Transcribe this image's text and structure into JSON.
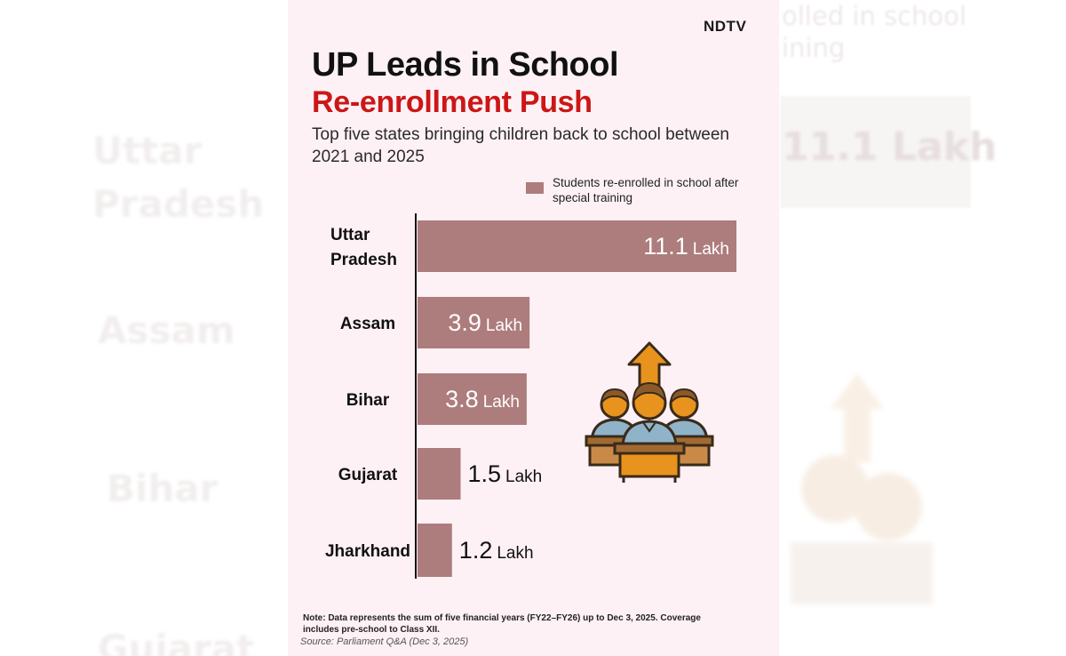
{
  "brand": "NDTV",
  "title_line1": "UP Leads in School",
  "title_line2": "Re-enrollment Push",
  "subtitle": "Top five states bringing children back to school between 2021 and 2025",
  "note": "Note: Data represents the sum of five financial years (FY22–FY26) up to Dec 3, 2025. Coverage includes pre-school to Class XII.",
  "source": "Source: Parliament Q&A (Dec 3, 2025)",
  "colors": {
    "bar": "#ad7c7c",
    "title_accent": "#cc1616",
    "background": "#fdf1f5"
  },
  "chart_data": {
    "type": "bar",
    "orientation": "horizontal",
    "title": "UP Leads in School Re-enrollment Push",
    "categories": [
      "Uttar Pradesh",
      "Assam",
      "Bihar",
      "Gujarat",
      "Jharkhand"
    ],
    "series": [
      {
        "name": "Students re-enrolled in school after special training",
        "values": [
          11.1,
          3.9,
          3.8,
          1.5,
          1.2
        ]
      }
    ],
    "unit": "Lakh",
    "xlim": [
      0,
      11.1
    ],
    "legend": "top-right",
    "grid": false
  },
  "background_echo": {
    "left_labels": [
      "Uttar Pradesh",
      "Assam",
      "Bihar",
      "Gujarat"
    ],
    "right_value": "11.1 Lakh",
    "right_top": "olled in school\nining"
  }
}
